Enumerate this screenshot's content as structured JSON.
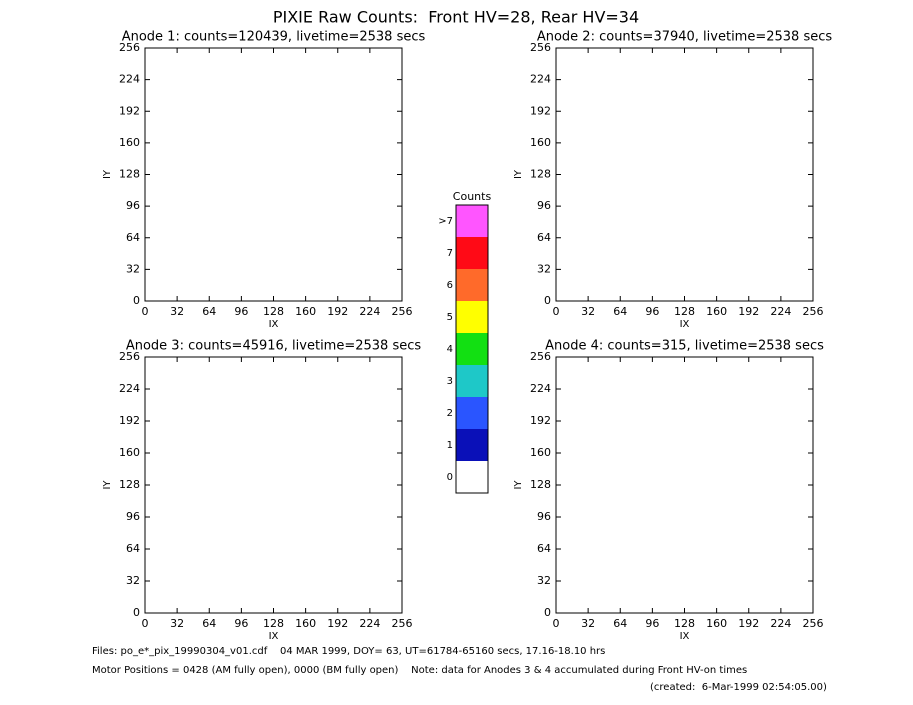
{
  "title": "PIXIE Raw Counts:  Front HV=28, Rear HV=34",
  "chart_data": [
    {
      "type": "heatmap",
      "title": "Anode 1: counts=120439, livetime=2538 secs",
      "xlabel": "IX",
      "ylabel": "IY",
      "xlim": [
        0,
        256
      ],
      "ylim": [
        0,
        256
      ],
      "xticks": [
        0,
        32,
        64,
        96,
        128,
        160,
        192,
        224,
        256
      ],
      "yticks": [
        0,
        32,
        64,
        96,
        128,
        160,
        192,
        224,
        256
      ]
    },
    {
      "type": "heatmap",
      "title": "Anode 2: counts=37940, livetime=2538 secs",
      "xlabel": "IX",
      "ylabel": "IY",
      "xlim": [
        0,
        256
      ],
      "ylim": [
        0,
        256
      ],
      "xticks": [
        0,
        32,
        64,
        96,
        128,
        160,
        192,
        224,
        256
      ],
      "yticks": [
        0,
        32,
        64,
        96,
        128,
        160,
        192,
        224,
        256
      ]
    },
    {
      "type": "heatmap",
      "title": "Anode 3: counts=45916, livetime=2538 secs",
      "xlabel": "IX",
      "ylabel": "IY",
      "xlim": [
        0,
        256
      ],
      "ylim": [
        0,
        256
      ],
      "xticks": [
        0,
        32,
        64,
        96,
        128,
        160,
        192,
        224,
        256
      ],
      "yticks": [
        0,
        32,
        64,
        96,
        128,
        160,
        192,
        224,
        256
      ]
    },
    {
      "type": "heatmap",
      "title": "Anode 4: counts=315, livetime=2538 secs",
      "xlabel": "IX",
      "ylabel": "IY",
      "xlim": [
        0,
        256
      ],
      "ylim": [
        0,
        256
      ],
      "xticks": [
        0,
        32,
        64,
        96,
        128,
        160,
        192,
        224,
        256
      ],
      "yticks": [
        0,
        32,
        64,
        96,
        128,
        160,
        192,
        224,
        256
      ]
    }
  ],
  "colorbar": {
    "title": "Counts",
    "categories": [
      "0",
      "1",
      "2",
      "3",
      "4",
      "5",
      "6",
      "7",
      ">7"
    ],
    "colors": [
      "#ffffff",
      "#0a10b8",
      "#2a55ff",
      "#1ec8c8",
      "#12e012",
      "#ffff00",
      "#ff6a2a",
      "#ff0a16",
      "#ff55ff"
    ]
  },
  "footer": [
    "Files: po_e*_pix_19990304_v01.cdf    04 MAR 1999, DOY= 63, UT=61784-65160 secs, 17.16-18.10 hrs",
    "Motor Positions = 0428 (AM fully open), 0000 (BM fully open)    Note: data for Anodes 3 & 4 accumulated during Front HV-on times",
    "(created:  6-Mar-1999 02:54:05.00)"
  ]
}
